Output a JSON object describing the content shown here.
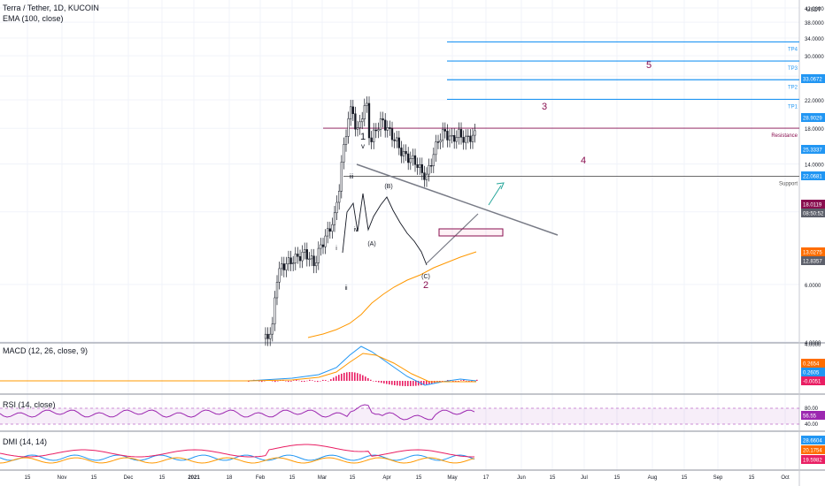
{
  "header": {
    "title": "Terra / Tether, 1D, KUCOIN",
    "ema_label": "EMA (100, close)",
    "currency": "USDT"
  },
  "chart_data": [
    {
      "type": "candlestick",
      "name": "price",
      "y_scale": "log",
      "y_ticks": [
        "42.0000",
        "38.0000",
        "34.0000",
        "30.0000",
        "26.0000",
        "22.0000",
        "18.0000",
        "14.0000",
        "10.0000",
        "6.0000",
        "4.0000"
      ],
      "x_ticks": [
        "15",
        "Nov",
        "15",
        "Dec",
        "15",
        "2021",
        "18",
        "Feb",
        "15",
        "Mar",
        "15",
        "Apr",
        "15",
        "May",
        "17",
        "Jun",
        "15",
        "Jul",
        "15",
        "Aug",
        "15",
        "Sep",
        "15",
        "Oct"
      ],
      "price_badges": [
        {
          "label": "33.0672",
          "color": "#2196f3"
        },
        {
          "label": "28.9029",
          "color": "#2196f3"
        },
        {
          "label": "25.3337",
          "color": "#2196f3"
        },
        {
          "label": "22.0681",
          "color": "#2196f3"
        },
        {
          "label": "18.0119",
          "color": "#880e4f"
        },
        {
          "label": "08:50:52",
          "color": "#5d606b"
        },
        {
          "label": "13.0275",
          "color": "#ff6d00"
        },
        {
          "label": "12.8357",
          "color": "#5d606b"
        }
      ],
      "levels": [
        {
          "label": "TP4",
          "value": 33.0672,
          "color": "#2196f3"
        },
        {
          "label": "TP3",
          "value": 28.9029,
          "color": "#2196f3"
        },
        {
          "label": "TP2",
          "value": 25.3337,
          "color": "#2196f3"
        },
        {
          "label": "TP1",
          "value": 22.0681,
          "color": "#2196f3"
        },
        {
          "label": "Resistance",
          "value": 18.0119,
          "color": "#880e4f"
        },
        {
          "label": "Support",
          "value": 12.8357,
          "color": "#555555"
        }
      ],
      "wave_labels": [
        "1",
        "v",
        "iii",
        "iv",
        "i",
        "ii",
        "(B)",
        "(A)",
        "(C)",
        "2",
        "3",
        "4",
        "5"
      ]
    },
    {
      "type": "line",
      "name": "MACD",
      "title": "MACD (12, 26, close, 9)",
      "y_ticks": [
        "4.0000"
      ],
      "values": [
        {
          "label": "0.2654",
          "color": "#ff6d00"
        },
        {
          "label": "0.2605",
          "color": "#2196f3"
        },
        {
          "label": "-0.0051",
          "color": "#e91e63"
        }
      ]
    },
    {
      "type": "line",
      "name": "RSI",
      "title": "RSI (14, close)",
      "y_ticks": [
        "80.00",
        "40.00"
      ],
      "values": [
        {
          "label": "56.55",
          "color": "#9c27b0"
        }
      ]
    },
    {
      "type": "line",
      "name": "DMI",
      "title": "DMI (14, 14)",
      "y_ticks": [
        "40.0000"
      ],
      "values": [
        {
          "label": "28.6604",
          "color": "#2196f3"
        },
        {
          "label": "20.1754",
          "color": "#ff6d00"
        },
        {
          "label": "19.5982",
          "color": "#e91e63"
        }
      ]
    }
  ]
}
